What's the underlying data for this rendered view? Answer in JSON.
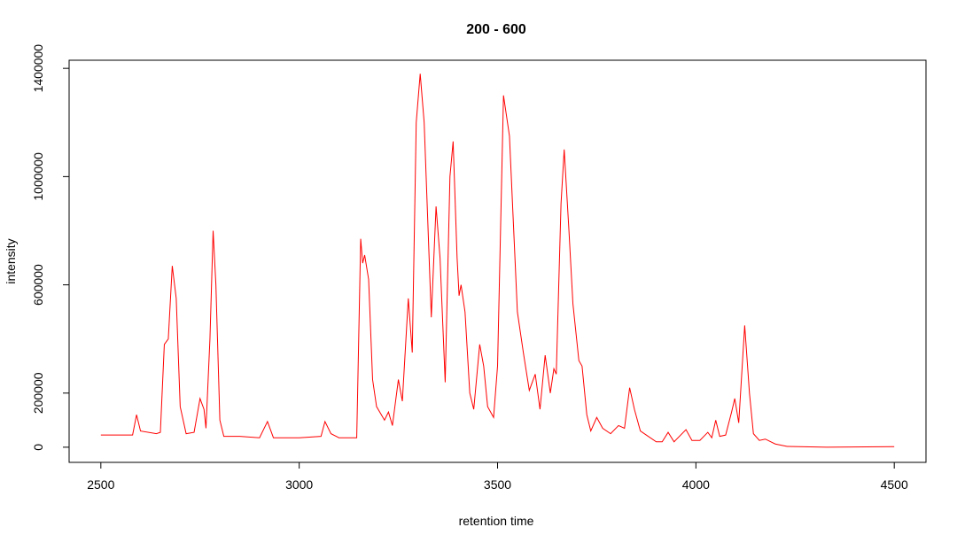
{
  "chart_data": {
    "type": "line",
    "title": "200 - 600",
    "xlabel": "retention time",
    "ylabel": "intensity",
    "x": [
      2500,
      2580,
      2590,
      2600,
      2640,
      2650,
      2660,
      2670,
      2680,
      2690,
      2700,
      2715,
      2735,
      2750,
      2760,
      2765,
      2775,
      2783,
      2790,
      2800,
      2810,
      2850,
      2900,
      2920,
      2935,
      3000,
      3055,
      3065,
      3080,
      3100,
      3145,
      3155,
      3160,
      3165,
      3175,
      3185,
      3195,
      3215,
      3225,
      3235,
      3250,
      3260,
      3275,
      3285,
      3295,
      3305,
      3315,
      3325,
      3333,
      3345,
      3355,
      3368,
      3380,
      3388,
      3398,
      3403,
      3408,
      3418,
      3430,
      3440,
      3455,
      3465,
      3475,
      3490,
      3500,
      3515,
      3530,
      3550,
      3565,
      3580,
      3595,
      3607,
      3620,
      3633,
      3642,
      3648,
      3660,
      3668,
      3680,
      3690,
      3705,
      3713,
      3725,
      3735,
      3750,
      3765,
      3785,
      3805,
      3820,
      3833,
      3845,
      3860,
      3880,
      3900,
      3915,
      3930,
      3945,
      3975,
      3990,
      4010,
      4030,
      4040,
      4050,
      4060,
      4075,
      4090,
      4098,
      4108,
      4123,
      4135,
      4145,
      4160,
      4175,
      4200,
      4230,
      4330,
      4500
    ],
    "series": [
      {
        "name": "intensity",
        "color": "#ff0000",
        "values": [
          45000,
          45000,
          120000,
          60000,
          50000,
          55000,
          380000,
          400000,
          670000,
          550000,
          150000,
          50000,
          55000,
          180000,
          140000,
          70000,
          400000,
          800000,
          600000,
          100000,
          40000,
          40000,
          35000,
          95000,
          35000,
          35000,
          40000,
          95000,
          50000,
          35000,
          35000,
          770000,
          680000,
          710000,
          620000,
          250000,
          150000,
          100000,
          130000,
          80000,
          250000,
          170000,
          550000,
          350000,
          1200000,
          1380000,
          1200000,
          800000,
          480000,
          890000,
          700000,
          240000,
          1000000,
          1130000,
          700000,
          560000,
          600000,
          500000,
          200000,
          140000,
          380000,
          300000,
          150000,
          110000,
          300000,
          1300000,
          1150000,
          500000,
          350000,
          210000,
          270000,
          140000,
          340000,
          200000,
          290000,
          270000,
          900000,
          1100000,
          800000,
          530000,
          320000,
          300000,
          120000,
          60000,
          110000,
          70000,
          50000,
          80000,
          70000,
          220000,
          140000,
          60000,
          40000,
          20000,
          20000,
          55000,
          20000,
          65000,
          25000,
          25000,
          55000,
          35000,
          100000,
          40000,
          45000,
          130000,
          180000,
          90000,
          450000,
          200000,
          50000,
          25000,
          30000,
          12000,
          3000,
          0,
          2000
        ]
      }
    ],
    "xlim": [
      2420,
      4580
    ],
    "xticks": [
      2500,
      3000,
      3500,
      4000,
      4500
    ],
    "ylim": [
      -56000,
      1430000
    ],
    "yticks": [
      0,
      200000,
      600000,
      1000000,
      1400000
    ]
  }
}
